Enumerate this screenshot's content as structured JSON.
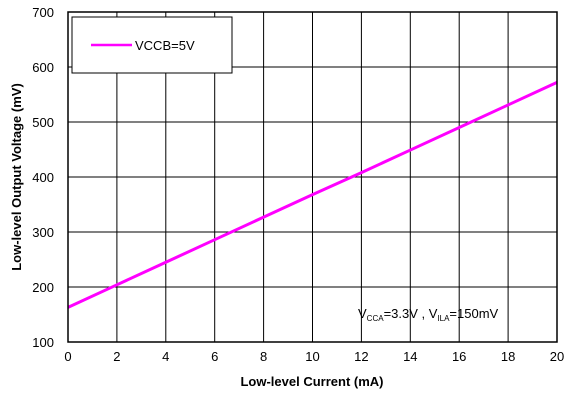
{
  "chart_data": {
    "type": "line",
    "title": "",
    "xlabel": "Low-level Current (mA)",
    "ylabel": "Low-level Output Voltage (mV)",
    "xlim": [
      0,
      20
    ],
    "ylim": [
      100,
      700
    ],
    "xticks": [
      "0",
      "2",
      "4",
      "6",
      "8",
      "10",
      "12",
      "14",
      "16",
      "18",
      "20"
    ],
    "yticks": [
      "100",
      "200",
      "300",
      "400",
      "500",
      "600",
      "700"
    ],
    "grid": true,
    "legend_position": "top-left",
    "series": [
      {
        "name": "VCCB=5V",
        "color": "#ff00ff",
        "x": [
          0,
          2,
          4,
          6,
          8,
          10,
          12,
          14,
          16,
          18,
          20
        ],
        "y": [
          163,
          204,
          245,
          286,
          327,
          368,
          408,
          449,
          490,
          531,
          572
        ]
      }
    ],
    "annotation": {
      "v1_main": "V",
      "v1_sub": "CCA",
      "v1_value": "=3.3V , ",
      "v2_main": "V",
      "v2_sub": "ILA",
      "v2_value": "=150mV"
    }
  }
}
